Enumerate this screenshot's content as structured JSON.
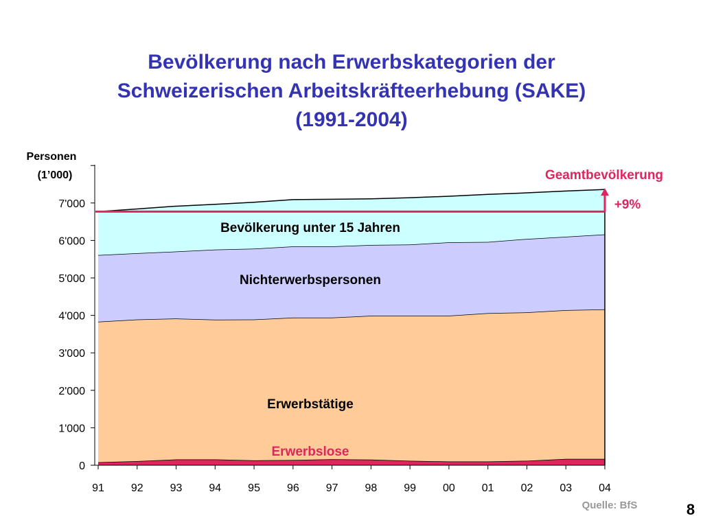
{
  "title": {
    "line1": "Bevölkerung nach Erwerbskategorien der",
    "line2": "Schweizerischen Arbeitskräfteerhebung (SAKE)",
    "line3": "(1991-2004)"
  },
  "source": "Quelle: BfS",
  "page_number": "8",
  "colors": {
    "erwerbslose": "#e0245e",
    "erwerbstaetige": "#ffcc99",
    "nichterwerbspersonen": "#ccccff",
    "unter15": "#ccffff",
    "reference_line": "#e0245e",
    "title": "#3333b3"
  },
  "chart_data": {
    "type": "area",
    "stacked": true,
    "ylabel_line1": "Personen",
    "ylabel_line2": "(1’000)",
    "ylim": [
      0,
      8000
    ],
    "yticks": [
      0,
      1000,
      2000,
      3000,
      4000,
      5000,
      6000,
      7000
    ],
    "ytick_labels": [
      "0",
      "1'000",
      "2'000",
      "3'000",
      "4'000",
      "5'000",
      "6'000",
      "7'000"
    ],
    "categories": [
      "91",
      "92",
      "93",
      "94",
      "95",
      "96",
      "97",
      "98",
      "99",
      "00",
      "01",
      "02",
      "03",
      "04"
    ],
    "series": [
      {
        "name": "Erwerbslose",
        "values": [
          80,
          110,
          155,
          155,
          130,
          140,
          160,
          150,
          120,
          100,
          100,
          120,
          170,
          170
        ]
      },
      {
        "name": "Erwerbstätige",
        "values": [
          3750,
          3780,
          3760,
          3730,
          3760,
          3800,
          3780,
          3840,
          3870,
          3890,
          3960,
          3960,
          3970,
          3990
        ]
      },
      {
        "name": "Nichterwerbspersonen",
        "values": [
          1780,
          1770,
          1790,
          1870,
          1890,
          1900,
          1900,
          1890,
          1900,
          1960,
          1900,
          1960,
          1960,
          2000
        ]
      },
      {
        "name": "Bevölkerung unter 15 Jahren",
        "values": [
          1160,
          1180,
          1210,
          1210,
          1240,
          1250,
          1260,
          1230,
          1250,
          1230,
          1270,
          1230,
          1220,
          1200
        ]
      }
    ],
    "total_label": "Geamtbevölkerung",
    "reference_value": 6770,
    "growth_label": "+9%"
  }
}
